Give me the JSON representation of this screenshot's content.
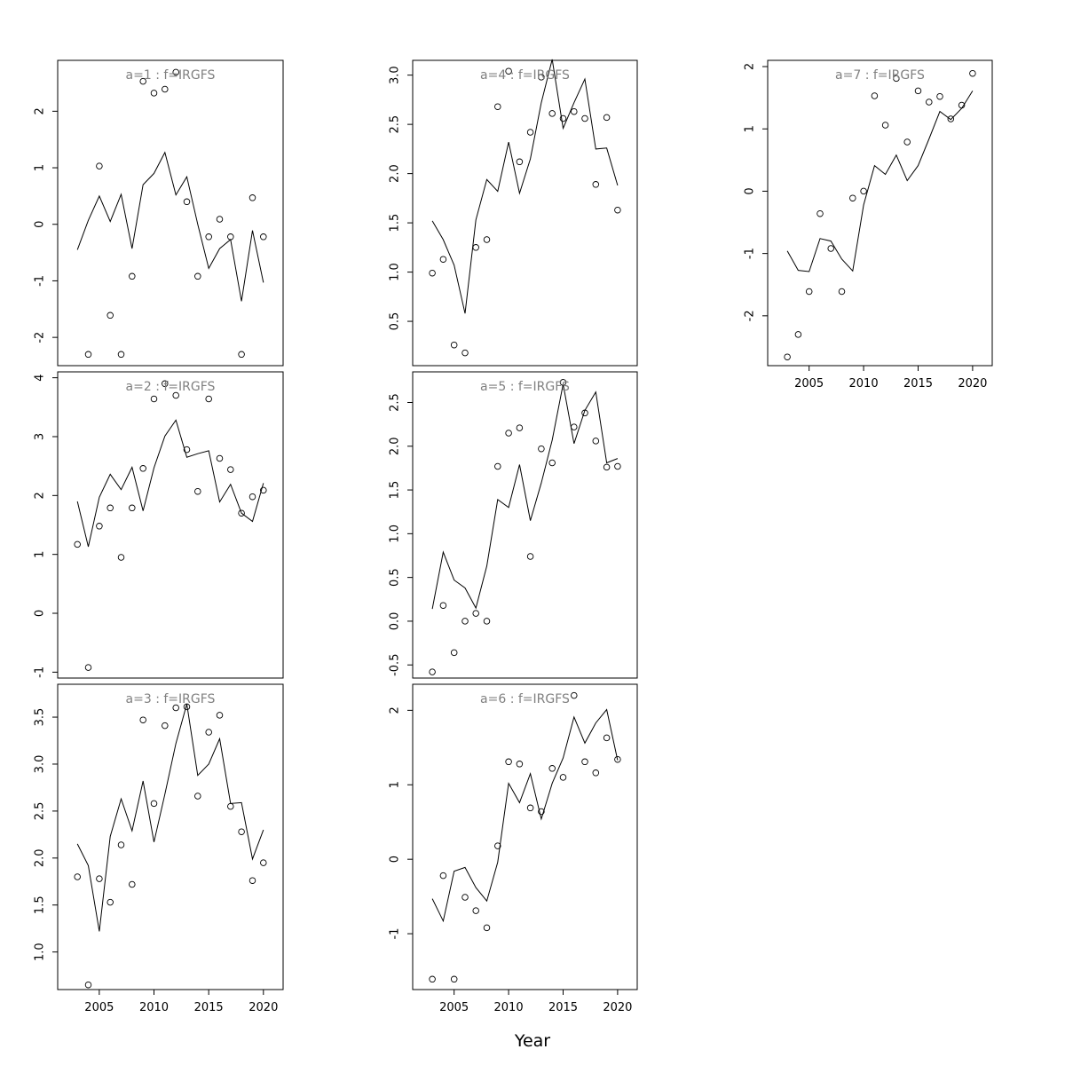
{
  "xlabel": "Year",
  "chart_data": [
    {
      "type": "line",
      "title": "a=1 : f=IRGFS",
      "x": [
        2003,
        2004,
        2005,
        2006,
        2007,
        2008,
        2009,
        2010,
        2011,
        2012,
        2013,
        2014,
        2015,
        2016,
        2017,
        2018,
        2019,
        2020
      ],
      "fitted": [
        -0.45,
        0.07,
        0.5,
        0.05,
        0.53,
        -0.43,
        0.7,
        0.9,
        1.27,
        0.52,
        0.84,
        0.0,
        -0.78,
        -0.43,
        -0.27,
        -1.36,
        -0.11,
        -1.03
      ],
      "observed": [
        null,
        -2.3,
        1.03,
        -1.61,
        -2.3,
        -0.92,
        2.53,
        2.32,
        2.39,
        2.69,
        0.4,
        -0.92,
        -0.22,
        0.09,
        -0.22,
        -2.3,
        0.47,
        -0.22
      ],
      "ylim": [
        -2.5,
        2.9
      ],
      "yticks": [
        -2,
        -1,
        0,
        1,
        2
      ],
      "xticks": [],
      "xlim": [
        2001.2,
        2021.8
      ]
    },
    {
      "type": "line",
      "title": "a=2 : f=IRGFS",
      "x": [
        2003,
        2004,
        2005,
        2006,
        2007,
        2008,
        2009,
        2010,
        2011,
        2012,
        2013,
        2014,
        2015,
        2016,
        2017,
        2018,
        2019,
        2020
      ],
      "fitted": [
        1.9,
        1.13,
        1.97,
        2.36,
        2.1,
        2.48,
        1.74,
        2.47,
        3.01,
        3.28,
        2.65,
        2.71,
        2.76,
        1.89,
        2.19,
        1.7,
        1.56,
        2.21
      ],
      "observed": [
        1.17,
        -0.92,
        1.48,
        1.79,
        0.95,
        1.79,
        2.46,
        3.64,
        3.9,
        3.7,
        2.78,
        2.07,
        3.64,
        2.63,
        2.44,
        1.7,
        1.98,
        2.09
      ],
      "ylim": [
        -1.1,
        4.1
      ],
      "yticks": [
        -1,
        0,
        1,
        2,
        3,
        4
      ],
      "xticks": [],
      "xlim": [
        2001.2,
        2021.8
      ]
    },
    {
      "type": "line",
      "title": "a=3 : f=IRGFS",
      "x": [
        2003,
        2004,
        2005,
        2006,
        2007,
        2008,
        2009,
        2010,
        2011,
        2012,
        2013,
        2014,
        2015,
        2016,
        2017,
        2018,
        2019,
        2020
      ],
      "fitted": [
        2.15,
        1.92,
        1.22,
        2.23,
        2.63,
        2.29,
        2.82,
        2.17,
        2.68,
        3.22,
        3.64,
        2.88,
        3.0,
        3.27,
        2.58,
        2.59,
        1.99,
        2.3
      ],
      "observed": [
        1.8,
        0.65,
        1.78,
        1.53,
        2.14,
        1.72,
        3.47,
        2.58,
        3.41,
        3.6,
        3.61,
        2.66,
        3.34,
        3.52,
        2.55,
        2.28,
        1.76,
        1.95
      ],
      "ylim": [
        0.6,
        3.85
      ],
      "yticks": [
        1.0,
        1.5,
        2.0,
        2.5,
        3.0,
        3.5
      ],
      "xticks": [
        2005,
        2010,
        2015,
        2020
      ],
      "xlim": [
        2001.2,
        2021.8
      ]
    },
    {
      "type": "line",
      "title": "a=4 : f=IRGFS",
      "x": [
        2003,
        2004,
        2005,
        2006,
        2007,
        2008,
        2009,
        2010,
        2011,
        2012,
        2013,
        2014,
        2015,
        2016,
        2017,
        2018,
        2019,
        2020
      ],
      "fitted": [
        1.52,
        1.33,
        1.07,
        0.58,
        1.53,
        1.94,
        1.82,
        2.32,
        1.8,
        2.15,
        2.72,
        3.16,
        2.46,
        2.72,
        2.96,
        2.25,
        2.26,
        1.88
      ],
      "observed": [
        0.99,
        1.13,
        0.26,
        0.18,
        1.25,
        1.33,
        2.68,
        3.04,
        2.12,
        2.42,
        2.98,
        2.61,
        2.56,
        2.63,
        2.56,
        1.89,
        2.57,
        1.63
      ],
      "ylim": [
        0.05,
        3.15
      ],
      "yticks": [
        0.5,
        1.0,
        1.5,
        2.0,
        2.5,
        3.0
      ],
      "xticks": [],
      "xlim": [
        2001.2,
        2021.8
      ]
    },
    {
      "type": "line",
      "title": "a=5 : f=IRGFS",
      "x": [
        2003,
        2004,
        2005,
        2006,
        2007,
        2008,
        2009,
        2010,
        2011,
        2012,
        2013,
        2014,
        2015,
        2016,
        2017,
        2018,
        2019,
        2020
      ],
      "fitted": [
        0.14,
        0.79,
        0.47,
        0.38,
        0.15,
        0.63,
        1.39,
        1.3,
        1.79,
        1.15,
        1.58,
        2.07,
        2.71,
        2.03,
        2.41,
        2.62,
        1.81,
        1.86
      ],
      "observed": [
        -0.58,
        0.18,
        -0.36,
        0.0,
        0.09,
        0.0,
        1.77,
        2.15,
        2.21,
        0.74,
        1.97,
        1.81,
        2.73,
        2.22,
        2.38,
        2.06,
        1.76,
        1.77
      ],
      "ylim": [
        -0.65,
        2.85
      ],
      "yticks": [
        -0.5,
        0.0,
        0.5,
        1.0,
        1.5,
        2.0,
        2.5
      ],
      "xticks": [],
      "xlim": [
        2001.2,
        2021.8
      ]
    },
    {
      "type": "line",
      "title": "a=6 : f=IRGFS",
      "x": [
        2003,
        2004,
        2005,
        2006,
        2007,
        2008,
        2009,
        2010,
        2011,
        2012,
        2013,
        2014,
        2015,
        2016,
        2017,
        2018,
        2019,
        2020
      ],
      "fitted": [
        -0.53,
        -0.83,
        -0.16,
        -0.11,
        -0.38,
        -0.56,
        -0.04,
        1.02,
        0.76,
        1.15,
        0.54,
        1.02,
        1.36,
        1.91,
        1.56,
        1.83,
        2.01,
        1.33
      ],
      "observed": [
        -1.61,
        -0.22,
        -1.61,
        -0.51,
        -0.69,
        -0.92,
        0.18,
        1.31,
        1.28,
        0.69,
        0.64,
        1.22,
        1.1,
        2.2,
        1.31,
        1.16,
        1.63,
        1.34
      ],
      "ylim": [
        -1.75,
        2.35
      ],
      "yticks": [
        -1,
        0,
        1,
        2
      ],
      "xticks": [
        2005,
        2010,
        2015,
        2020
      ],
      "xlim": [
        2001.2,
        2021.8
      ]
    },
    {
      "type": "line",
      "title": "a=7 : f=IRGFS",
      "x": [
        2003,
        2004,
        2005,
        2006,
        2007,
        2008,
        2009,
        2010,
        2011,
        2012,
        2013,
        2014,
        2015,
        2016,
        2017,
        2018,
        2019,
        2020
      ],
      "fitted": [
        -0.96,
        -1.27,
        -1.29,
        -0.76,
        -0.8,
        -1.09,
        -1.28,
        -0.22,
        0.41,
        0.27,
        0.58,
        0.17,
        0.41,
        0.84,
        1.28,
        1.15,
        1.33,
        1.61
      ],
      "observed": [
        -2.66,
        -2.3,
        -1.61,
        -0.36,
        -0.92,
        -1.61,
        -0.11,
        0.0,
        1.53,
        1.06,
        1.81,
        0.79,
        1.61,
        1.43,
        1.52,
        1.16,
        1.38,
        1.89
      ],
      "ylim": [
        -2.8,
        2.1
      ],
      "yticks": [
        -2,
        -1,
        0,
        1,
        2
      ],
      "xticks": [
        2005,
        2010,
        2015,
        2020
      ],
      "xlim": [
        2001.2,
        2021.8
      ]
    }
  ]
}
